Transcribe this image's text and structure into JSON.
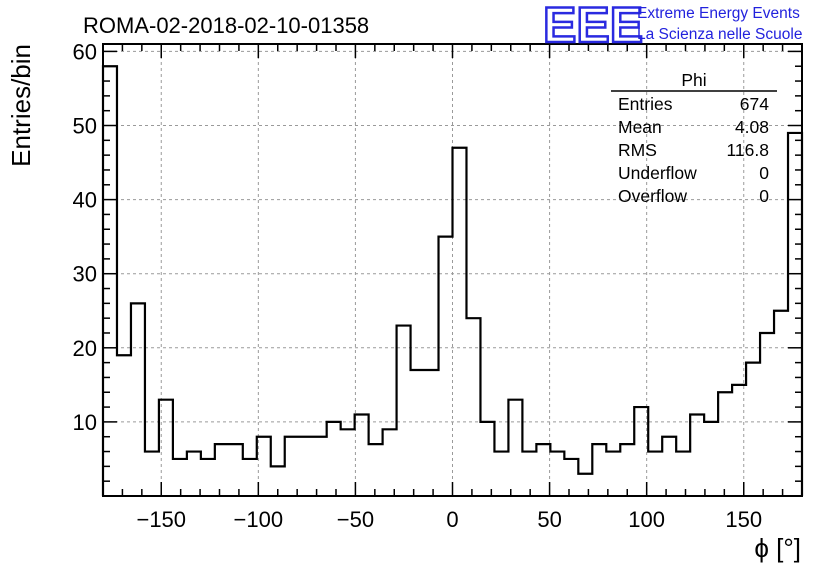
{
  "chart_data": {
    "type": "histogram",
    "title": "ROMA-02-2018-02-10-01358",
    "xlabel": "ϕ [°]",
    "ylabel": "Entries/bin",
    "xlim": [
      -180,
      180
    ],
    "ylim": [
      0,
      61
    ],
    "grid": true,
    "bin_width": 7.2,
    "x_ticks": [
      -150,
      -100,
      -50,
      0,
      50,
      100,
      150
    ],
    "y_ticks": [
      10,
      20,
      30,
      40,
      50,
      60
    ],
    "values": [
      58,
      19,
      26,
      6,
      13,
      5,
      6,
      5,
      7,
      7,
      5,
      8,
      4,
      8,
      8,
      8,
      10,
      9,
      11,
      7,
      9,
      23,
      17,
      17,
      35,
      47,
      24,
      10,
      6,
      13,
      6,
      7,
      6,
      5,
      3,
      7,
      6,
      7,
      12,
      6,
      8,
      6,
      11,
      10,
      14,
      15,
      18,
      22,
      25,
      49
    ]
  },
  "stats_box": {
    "name": "Phi",
    "rows": [
      {
        "label": "Entries",
        "value": "674"
      },
      {
        "label": "Mean",
        "value": "4.08"
      },
      {
        "label": "RMS",
        "value": "116.8"
      },
      {
        "label": "Underflow",
        "value": "0"
      },
      {
        "label": "Overflow",
        "value": "0"
      }
    ]
  },
  "branding": {
    "logo": "EEE",
    "line1": "Extreme Energy Events",
    "line2": "La Scienza nelle Scuole",
    "color": "#2222dd"
  }
}
